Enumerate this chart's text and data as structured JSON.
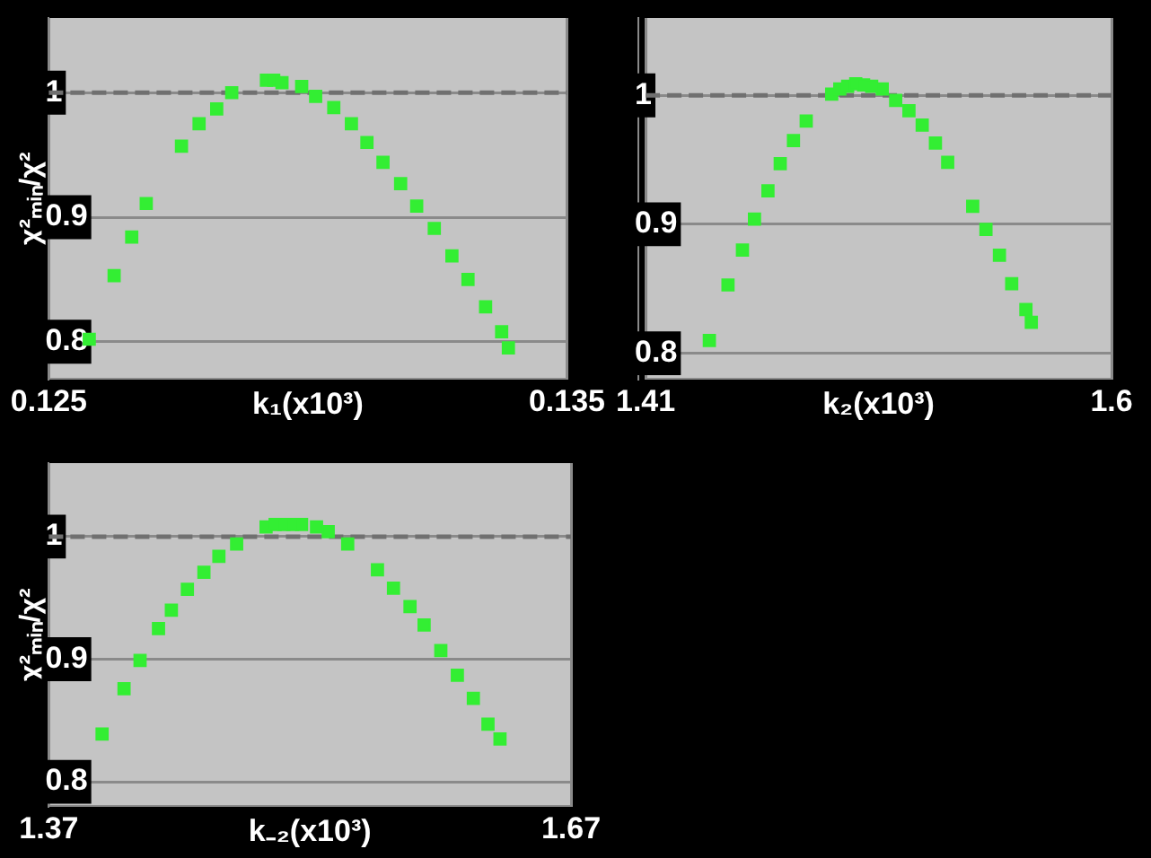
{
  "chart_data": [
    {
      "type": "scatter",
      "xlabel": "k₁(x10³)",
      "ylabel": "χ²ₘᵢₙ/χ²",
      "marker": "square",
      "grid": true,
      "legend": false,
      "xlim": [
        0.125,
        0.135
      ],
      "xticks": [
        0.125,
        0.135
      ],
      "ylim": [
        0.77,
        1.06
      ],
      "yticks": [
        0.8,
        0.9,
        1
      ],
      "ref_lines": [
        {
          "axis": "y",
          "value": 1,
          "color": "#707070",
          "line_style": "dashed"
        }
      ],
      "series": [
        {
          "color": "#33ee33",
          "x": [
            0.12578,
            0.12626,
            0.1266,
            0.12688,
            0.12756,
            0.1279,
            0.12824,
            0.12853,
            0.1292,
            0.12934,
            0.1295,
            0.12988,
            0.13015,
            0.1305,
            0.13084,
            0.13114,
            0.13145,
            0.13179,
            0.1321,
            0.13244,
            0.13278,
            0.13309,
            0.13343,
            0.13374,
            0.13387
          ],
          "values": [
            0.802,
            0.853,
            0.884,
            0.911,
            0.957,
            0.975,
            0.987,
            1.0,
            1.01,
            1.01,
            1.008,
            1.005,
            0.997,
            0.988,
            0.975,
            0.96,
            0.944,
            0.927,
            0.909,
            0.891,
            0.869,
            0.85,
            0.828,
            0.808,
            0.795
          ]
        }
      ]
    },
    {
      "type": "scatter",
      "xlabel": "k₂(x10³)",
      "ylabel": null,
      "marker": "square",
      "grid": true,
      "legend": false,
      "xlim": [
        1.41,
        1.6
      ],
      "xticks": [
        1.41,
        1.6
      ],
      "ylim": [
        0.78,
        1.06
      ],
      "yticks": [
        0.8,
        0.9,
        1
      ],
      "ref_lines": [
        {
          "axis": "y",
          "value": 1,
          "color": "#707070",
          "line_style": "dashed"
        }
      ],
      "series": [
        {
          "color": "#33ee33",
          "x": [
            1.436,
            1.4436,
            1.4495,
            1.4544,
            1.4599,
            1.4649,
            1.4703,
            1.4755,
            1.4859,
            1.4892,
            1.4924,
            1.4957,
            1.4989,
            1.5022,
            1.5065,
            1.512,
            1.5174,
            1.5228,
            1.5282,
            1.5332,
            1.5434,
            1.5488,
            1.5543,
            1.5593,
            1.5651,
            1.5673
          ],
          "values": [
            0.81,
            0.853,
            0.88,
            0.904,
            0.926,
            0.947,
            0.965,
            0.98,
            1.001,
            1.005,
            1.007,
            1.009,
            1.008,
            1.007,
            1.005,
            0.996,
            0.988,
            0.977,
            0.963,
            0.948,
            0.914,
            0.896,
            0.876,
            0.854,
            0.834,
            0.824
          ]
        }
      ]
    },
    {
      "type": "scatter",
      "xlabel": "k₋₂(x10³)",
      "ylabel": "χ²ₘᵢₙ/χ²",
      "marker": "square",
      "grid": true,
      "legend": false,
      "xlim": [
        1.37,
        1.67
      ],
      "xticks": [
        1.37,
        1.67
      ],
      "ylim": [
        0.78,
        1.06
      ],
      "yticks": [
        0.8,
        0.9,
        1
      ],
      "ref_lines": [
        {
          "axis": "y",
          "value": 1,
          "color": "#707070",
          "line_style": "dashed"
        }
      ],
      "series": [
        {
          "color": "#33ee33",
          "x": [
            1.4006,
            1.4132,
            1.4224,
            1.433,
            1.4404,
            1.4496,
            1.4591,
            1.4677,
            1.4779,
            1.4948,
            1.5,
            1.505,
            1.5101,
            1.5152,
            1.5238,
            1.5305,
            1.5417,
            1.5588,
            1.568,
            1.5775,
            1.5856,
            1.5952,
            1.6047,
            1.6139,
            1.6223,
            1.6292
          ],
          "values": [
            0.839,
            0.876,
            0.899,
            0.925,
            0.94,
            0.957,
            0.971,
            0.984,
            0.994,
            1.008,
            1.01,
            1.01,
            1.01,
            1.01,
            1.008,
            1.004,
            0.994,
            0.973,
            0.958,
            0.943,
            0.928,
            0.907,
            0.887,
            0.868,
            0.847,
            0.835
          ]
        }
      ]
    }
  ]
}
